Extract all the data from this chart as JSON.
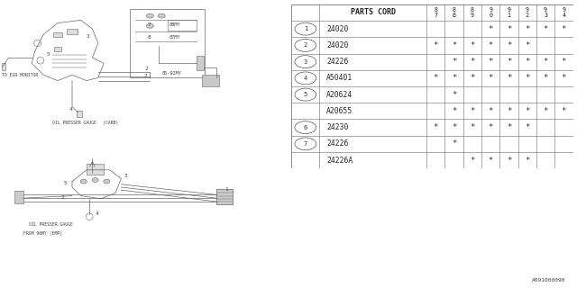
{
  "bg_color": "#ffffff",
  "diagram_label": "A091000090",
  "line_color": "#666666",
  "text_color": "#444444",
  "table": {
    "header_col": "PARTS CORD",
    "year_cols": [
      "8\n7",
      "8\n8",
      "8\n9",
      "9\n0",
      "9\n1",
      "9\n2",
      "9\n3",
      "9\n4"
    ],
    "rows": [
      {
        "num": "1",
        "circle": true,
        "part": "24020",
        "years": [
          0,
          0,
          0,
          1,
          1,
          1,
          1,
          1
        ]
      },
      {
        "num": "2",
        "circle": true,
        "part": "24020",
        "years": [
          1,
          1,
          1,
          1,
          1,
          1,
          0,
          0
        ]
      },
      {
        "num": "3",
        "circle": true,
        "part": "24226",
        "years": [
          0,
          1,
          1,
          1,
          1,
          1,
          1,
          1
        ]
      },
      {
        "num": "4",
        "circle": true,
        "part": "A50401",
        "years": [
          1,
          1,
          1,
          1,
          1,
          1,
          1,
          1
        ]
      },
      {
        "num": "5",
        "circle": true,
        "part": "A20624",
        "years": [
          0,
          1,
          0,
          0,
          0,
          0,
          0,
          0
        ]
      },
      {
        "num": "5",
        "circle": false,
        "part": "A20655",
        "years": [
          0,
          1,
          1,
          1,
          1,
          1,
          1,
          1
        ]
      },
      {
        "num": "6",
        "circle": true,
        "part": "24230",
        "years": [
          1,
          1,
          1,
          1,
          1,
          1,
          0,
          0
        ]
      },
      {
        "num": "7",
        "circle": true,
        "part": "24226",
        "years": [
          0,
          1,
          0,
          0,
          0,
          0,
          0,
          0
        ]
      },
      {
        "num": "7",
        "circle": false,
        "part": "24226A",
        "years": [
          0,
          0,
          1,
          1,
          1,
          1,
          0,
          0
        ]
      }
    ]
  },
  "top_labels": [
    "TO EGR MONITOR",
    "OIL PRESSER GAUGE",
    "(CARB)",
    "88MY",
    "87MY",
    "85-92MY"
  ],
  "bottom_labels": [
    "OIL PRESSER GAUGE",
    "FROM 90MY (EMP)"
  ]
}
